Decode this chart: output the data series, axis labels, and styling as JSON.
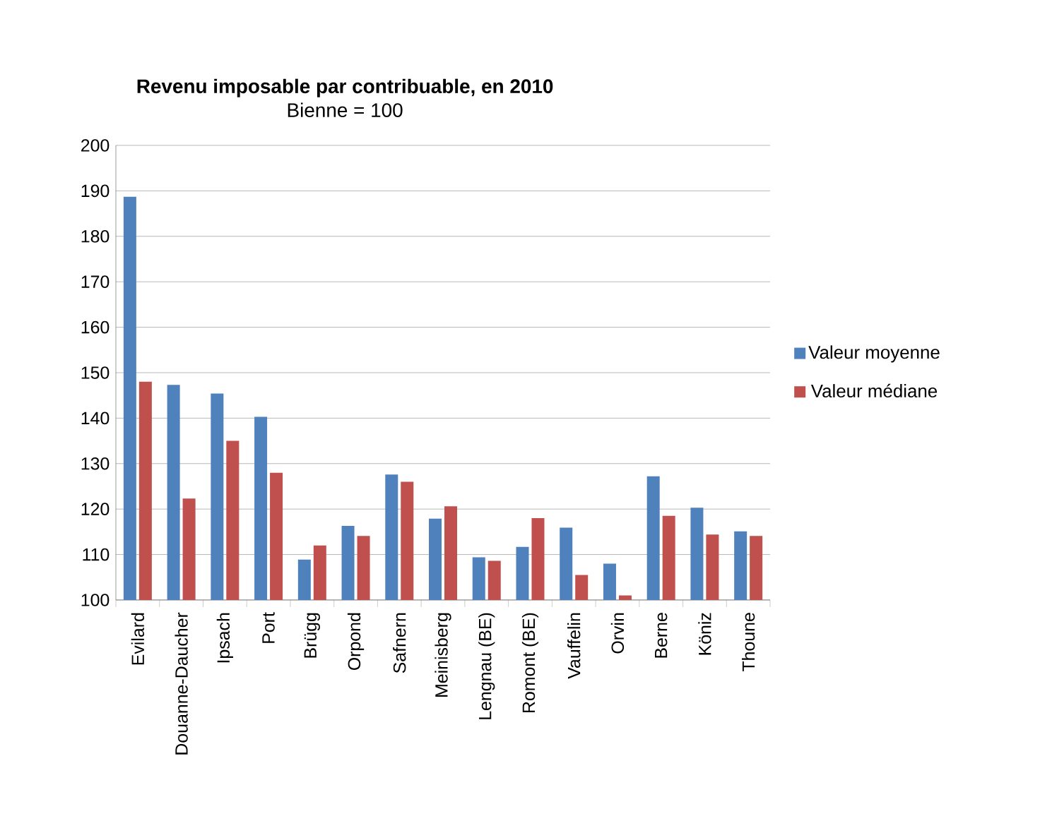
{
  "chart_data": {
    "type": "bar",
    "title": "Revenu imposable par contribuable, en 2010",
    "subtitle": "Bienne = 100",
    "categories": [
      "Evilard",
      "Douanne-Daucher",
      "Ipsach",
      "Port",
      "Brügg",
      "Orpond",
      "Safnern",
      "Meinisberg",
      "Lengnau (BE)",
      "Romont (BE)",
      "Vauffelin",
      "Orvin",
      "Berne",
      "Köniz",
      "Thoune"
    ],
    "series": [
      {
        "name": "Valeur moyenne",
        "color": "#4f81bd",
        "values": [
          188.7,
          147.3,
          145.4,
          140.3,
          108.9,
          116.3,
          127.6,
          117.9,
          109.4,
          111.7,
          115.9,
          108.0,
          127.2,
          120.3,
          115.1
        ]
      },
      {
        "name": "Valeur médiane",
        "color": "#c0504d",
        "values": [
          148.0,
          122.3,
          135.0,
          128.0,
          112.0,
          114.1,
          126.0,
          120.6,
          108.6,
          118.0,
          105.5,
          101.0,
          118.5,
          114.4,
          114.1
        ]
      }
    ],
    "ylim": [
      100,
      200
    ],
    "yticks": [
      100,
      110,
      120,
      130,
      140,
      150,
      160,
      170,
      180,
      190,
      200
    ],
    "grid": "y",
    "legend": "right"
  }
}
